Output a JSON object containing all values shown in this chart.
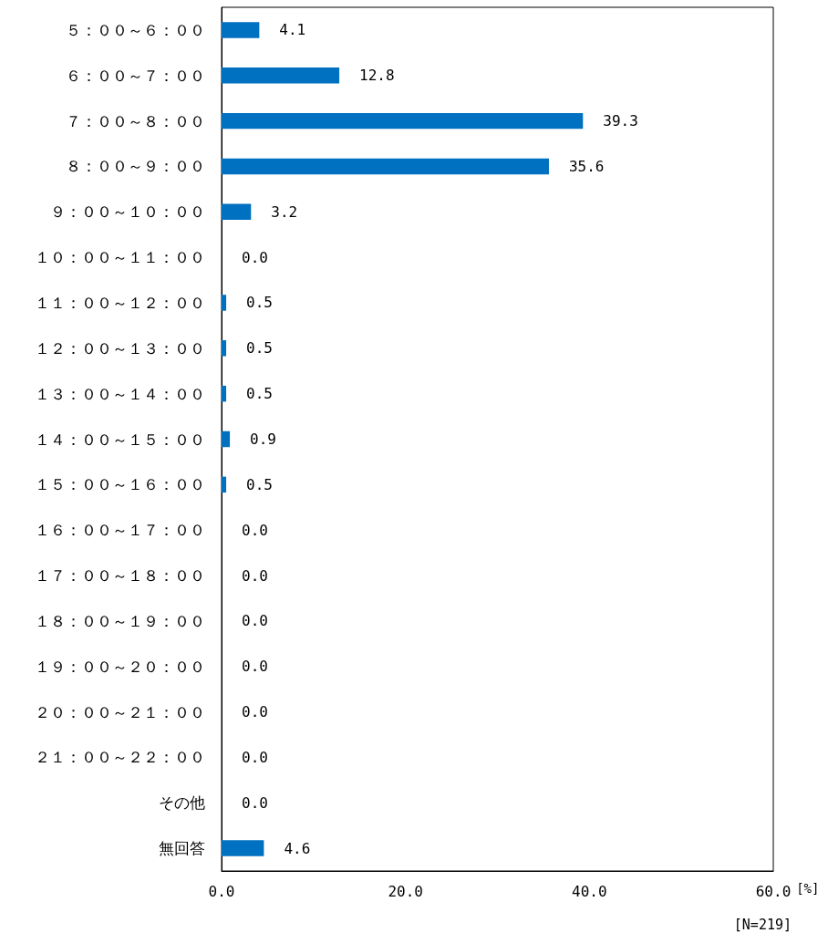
{
  "chart_data": {
    "type": "bar",
    "orientation": "horizontal",
    "categories": [
      "５：００～６：００",
      "６：００～７：００",
      "７：００～８：００",
      "８：００～９：００",
      "９：００～１０：００",
      "１０：００～１１：００",
      "１１：００～１２：００",
      "１２：００～１３：００",
      "１３：００～１４：００",
      "１４：００～１５：００",
      "１５：００～１６：００",
      "１６：００～１７：００",
      "１７：００～１８：００",
      "１８：００～１９：００",
      "１９：００～２０：００",
      "２０：００～２１：００",
      "２１：００～２２：００",
      "その他",
      "無回答"
    ],
    "values": [
      4.1,
      12.8,
      39.3,
      35.6,
      3.2,
      0,
      0.5,
      0.5,
      0.5,
      0.9,
      0.5,
      0,
      0,
      0,
      0,
      0,
      0,
      0,
      4.6
    ],
    "value_labels": [
      "4.1",
      "12.8",
      "39.3",
      "35.6",
      "3.2",
      "0.0",
      "0.5",
      "0.5",
      "0.5",
      "0.9",
      "0.5",
      "0.0",
      "0.0",
      "0.0",
      "0.0",
      "0.0",
      "0.0",
      "0.0",
      "4.6"
    ],
    "color": "#0070c0",
    "xlim": [
      0,
      60
    ],
    "xticks": [
      {
        "value": 0,
        "label": "0.0"
      },
      {
        "value": 20,
        "label": "20.0"
      },
      {
        "value": 40,
        "label": "40.0"
      },
      {
        "value": 60,
        "label": "60.0"
      }
    ],
    "xlabel": "[%]",
    "annotations": [
      "[N=219]"
    ]
  }
}
